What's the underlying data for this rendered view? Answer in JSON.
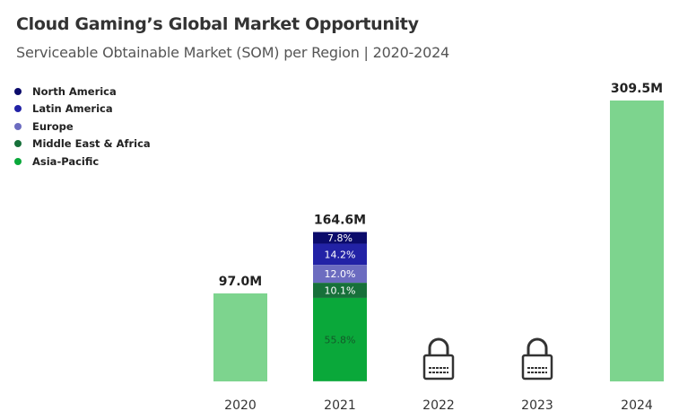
{
  "chart_data": {
    "type": "bar",
    "title": "Cloud Gaming’s Global Market Opportunity",
    "subtitle": "Serviceable Obtainable Market (SOM) per Region | 2020-2024",
    "categories": [
      "2020",
      "2021",
      "2022",
      "2023",
      "2024"
    ],
    "totals": [
      97.0,
      164.6,
      null,
      null,
      309.5
    ],
    "total_labels": [
      "97.0M",
      "164.6M",
      "",
      "",
      "309.5M"
    ],
    "locked": [
      false,
      false,
      true,
      true,
      false
    ],
    "series": [
      {
        "name": "North America",
        "color": "#0b0b6b",
        "share_2021": 7.8,
        "label": "7.8%"
      },
      {
        "name": "Latin America",
        "color": "#2222a6",
        "share_2021": 14.2,
        "label": "14.2%"
      },
      {
        "name": "Europe",
        "color": "#6c6cc0",
        "share_2021": 12.0,
        "label": "12.0%"
      },
      {
        "name": "Middle East & Africa",
        "color": "#17703a",
        "share_2021": 10.1,
        "label": "10.1%"
      },
      {
        "name": "Asia-Pacific",
        "color": "#0aa83a",
        "share_2021": 55.8,
        "label": "55.8%"
      }
    ],
    "total_bar_color": "#7dd48e",
    "legend_position": "top-left",
    "grid": false,
    "ylim": [
      0,
      309.5
    ]
  }
}
